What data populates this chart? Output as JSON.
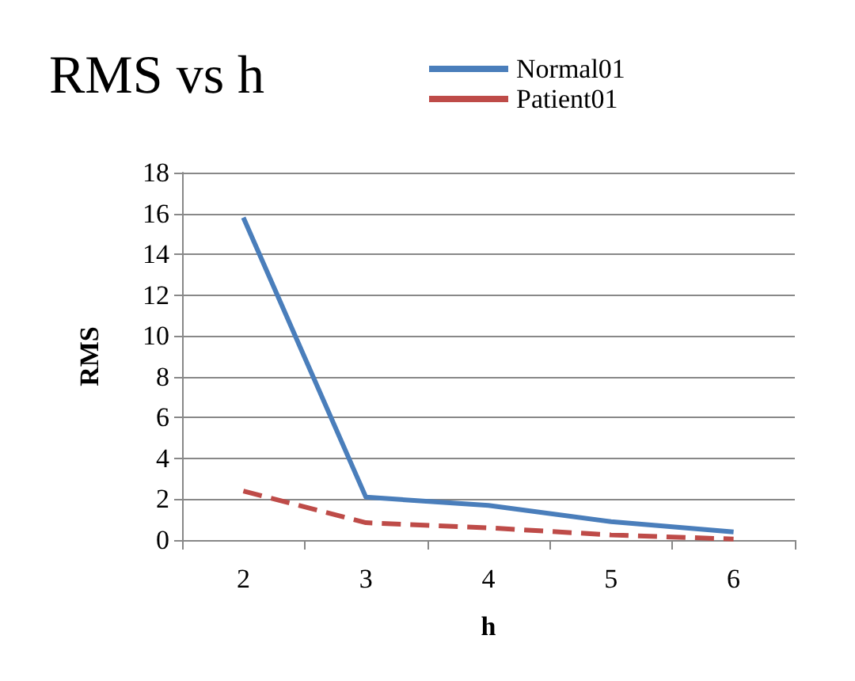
{
  "chart_data": {
    "type": "line",
    "title": "RMS vs h",
    "xlabel": "h",
    "ylabel": "RMS",
    "categories": [
      "2",
      "3",
      "4",
      "5",
      "6"
    ],
    "series": [
      {
        "name": "Normal01",
        "color": "#4a7ebb",
        "values": [
          15.8,
          2.1,
          1.7,
          0.9,
          0.4
        ],
        "line_style": "solid"
      },
      {
        "name": "Patient01",
        "color": "#be4b48",
        "values": [
          2.4,
          0.85,
          0.6,
          0.25,
          0.05
        ],
        "line_style": "dashed"
      }
    ],
    "ylim": [
      0,
      18
    ],
    "yticks": [
      0,
      2,
      4,
      6,
      8,
      10,
      12,
      14,
      16,
      18
    ],
    "grid": "y",
    "legend": "top right",
    "marker": "none"
  }
}
